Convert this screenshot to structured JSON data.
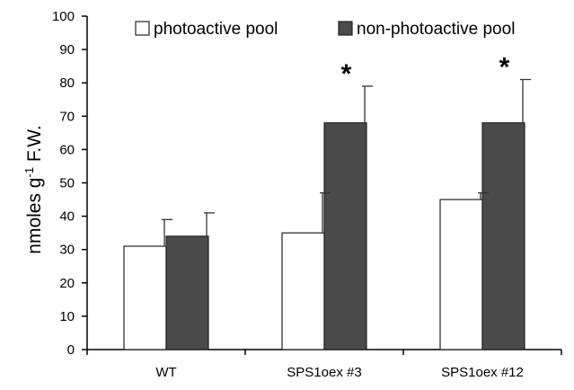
{
  "chart_data": {
    "type": "bar",
    "title": "",
    "xlabel": "",
    "ylabel": {
      "main": "nmoles g",
      "sup": "-1",
      "suffix": " F.W."
    },
    "ylim": [
      0,
      100
    ],
    "yticks": [
      0,
      10,
      20,
      30,
      40,
      50,
      60,
      70,
      80,
      90,
      100
    ],
    "categories": [
      "WT",
      "SPS1oex #3",
      "SPS1oex #12"
    ],
    "series": [
      {
        "name": "photoactive pool",
        "color": "#ffffff",
        "values": [
          31,
          35,
          45
        ],
        "errors": [
          8,
          12,
          2
        ]
      },
      {
        "name": "non-photoactive pool",
        "color": "#4a4a4a",
        "values": [
          34,
          68,
          68
        ],
        "errors": [
          7,
          11,
          13
        ]
      }
    ],
    "annotations": [
      {
        "category": 1,
        "series": 1,
        "text": "*"
      },
      {
        "category": 2,
        "series": 1,
        "text": "*"
      }
    ],
    "legend_position": "top",
    "grid": false
  }
}
